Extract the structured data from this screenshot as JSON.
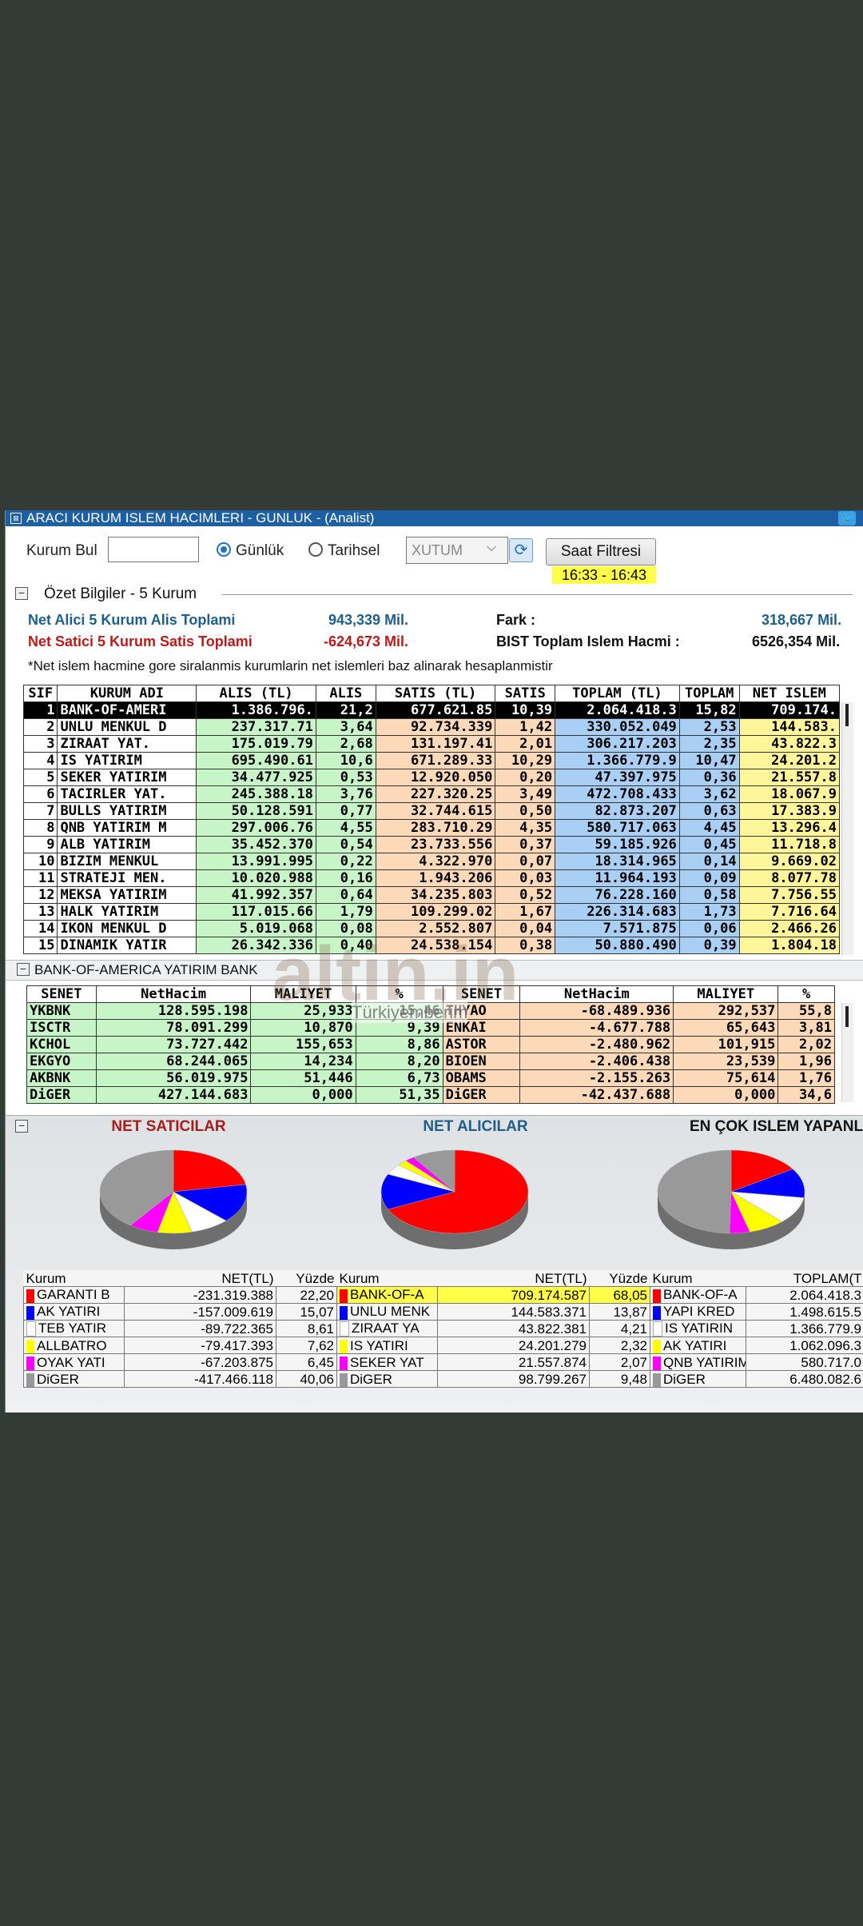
{
  "window": {
    "title": "ARACI KURUM ISLEM HACIMLERI - GUNLUK - (Analist)"
  },
  "toolbar": {
    "kurum_bul_label": "Kurum Bul",
    "kurum_bul_value": "",
    "radio_gunluk": "Günlük",
    "radio_tarihsel": "Tarihsel",
    "select_value": "XUTUM",
    "saat_filtresi": "Saat Filtresi",
    "time_range": "16:33 - 16:43"
  },
  "summary": {
    "section_title": "Özet Bilgiler - 5 Kurum",
    "net_alici_label": "Net Alici 5 Kurum Alis Toplami",
    "net_alici_value": "943,339 Mil.",
    "fark_label": "Fark :",
    "fark_value": "318,667 Mil.",
    "net_satici_label": "Net Satici 5 Kurum Satis Toplami",
    "net_satici_value": "-624,673 Mil.",
    "bist_label": "BIST Toplam Islem Hacmi :",
    "bist_value": "6526,354 Mil.",
    "note": "*Net islem hacmine gore siralanmis kurumlarin net islemleri baz alinarak hesaplanmistir"
  },
  "main_table": {
    "headers": [
      "SIF",
      "KURUM ADI",
      "ALIS (TL)",
      "ALIS",
      "SATIS (TL)",
      "SATIS",
      "TOPLAM (TL)",
      "TOPLAM",
      "NET ISLEM"
    ],
    "rows": [
      [
        "1",
        "BANK-OF-AMERI",
        "1.386.796.",
        "21,2",
        "677.621.85",
        "10,39",
        "2.064.418.3",
        "15,82",
        "709.174."
      ],
      [
        "2",
        "UNLU MENKUL D",
        "237.317.71",
        "3,64",
        "92.734.339",
        "1,42",
        "330.052.049",
        "2,53",
        "144.583."
      ],
      [
        "3",
        "ZIRAAT YAT.",
        "175.019.79",
        "2,68",
        "131.197.41",
        "2,01",
        "306.217.203",
        "2,35",
        "43.822.3"
      ],
      [
        "4",
        "IS YATIRIM",
        "695.490.61",
        "10,6",
        "671.289.33",
        "10,29",
        "1.366.779.9",
        "10,47",
        "24.201.2"
      ],
      [
        "5",
        "SEKER YATIRIM",
        "34.477.925",
        "0,53",
        "12.920.050",
        "0,20",
        "47.397.975",
        "0,36",
        "21.557.8"
      ],
      [
        "6",
        "TACIRLER YAT.",
        "245.388.18",
        "3,76",
        "227.320.25",
        "3,49",
        "472.708.433",
        "3,62",
        "18.067.9"
      ],
      [
        "7",
        "BULLS YATIRIM",
        "50.128.591",
        "0,77",
        "32.744.615",
        "0,50",
        "82.873.207",
        "0,63",
        "17.383.9"
      ],
      [
        "8",
        "QNB YATIRIM M",
        "297.006.76",
        "4,55",
        "283.710.29",
        "4,35",
        "580.717.063",
        "4,45",
        "13.296.4"
      ],
      [
        "9",
        "ALB YATIRIM",
        "35.452.370",
        "0,54",
        "23.733.556",
        "0,37",
        "59.185.926",
        "0,45",
        "11.718.8"
      ],
      [
        "10",
        "BIZIM MENKUL",
        "13.991.995",
        "0,22",
        "4.322.970",
        "0,07",
        "18.314.965",
        "0,14",
        "9.669.02"
      ],
      [
        "11",
        "STRATEJI MEN.",
        "10.020.988",
        "0,16",
        "1.943.206",
        "0,03",
        "11.964.193",
        "0,09",
        "8.077.78"
      ],
      [
        "12",
        "MEKSA YATIRIM",
        "41.992.357",
        "0,64",
        "34.235.803",
        "0,52",
        "76.228.160",
        "0,58",
        "7.756.55"
      ],
      [
        "13",
        "HALK YATIRIM",
        "117.015.66",
        "1,79",
        "109.299.02",
        "1,67",
        "226.314.683",
        "1,73",
        "7.716.64"
      ],
      [
        "14",
        "IKON MENKUL D",
        "5.019.068",
        "0,08",
        "2.552.807",
        "0,04",
        "7.571.875",
        "0,06",
        "2.466.26"
      ],
      [
        "15",
        "DINAMIK YATIR",
        "26.342.336",
        "0,40",
        "24.538.154",
        "0,38",
        "50.880.490",
        "0,39",
        "1.804.18"
      ]
    ]
  },
  "detail": {
    "section_title": "BANK-OF-AMERICA YATIRIM BANK",
    "headers": [
      "SENET",
      "NetHacim",
      "MALIYET",
      "%",
      "SENET",
      "NetHacim",
      "MALIYET",
      "%"
    ],
    "rows": [
      [
        "YKBNK",
        "128.595.198",
        "25,933",
        "15,46",
        "THYAO",
        "-68.489.936",
        "292,537",
        "55,8"
      ],
      [
        "ISCTR",
        "78.091.299",
        "10,870",
        "9,39",
        "ENKAI",
        "-4.677.788",
        "65,643",
        "3,81"
      ],
      [
        "KCHOL",
        "73.727.442",
        "155,653",
        "8,86",
        "ASTOR",
        "-2.480.962",
        "101,915",
        "2,02"
      ],
      [
        "EKGYO",
        "68.244.065",
        "14,234",
        "8,20",
        "BIOEN",
        "-2.406.438",
        "23,539",
        "1,96"
      ],
      [
        "AKBNK",
        "56.019.975",
        "51,446",
        "6,73",
        "OBAMS",
        "-2.155.263",
        "75,614",
        "1,76"
      ],
      [
        "DiGER",
        "427.144.683",
        "0,000",
        "51,35",
        "DiGER",
        "-42.437.688",
        "0,000",
        "34,6"
      ]
    ]
  },
  "charts_section": {
    "titles": [
      "NET SATICILAR",
      "NET ALICILAR",
      "EN ÇOK ISLEM YAPANL"
    ]
  },
  "chart_data": [
    {
      "type": "pie",
      "title": "NET SATICILAR",
      "categories": [
        "GARANTI B",
        "AK YATIRI",
        "TEB YATIR",
        "ALLBATRO",
        "OYAK YATI",
        "DiGER"
      ],
      "values": [
        22.2,
        15.07,
        8.61,
        7.62,
        6.45,
        40.06
      ],
      "colors": [
        "#ff0000",
        "#0000ff",
        "#ffffff",
        "#ffff00",
        "#ff00ff",
        "#999999"
      ]
    },
    {
      "type": "pie",
      "title": "NET ALICILAR",
      "categories": [
        "BANK-OF-A",
        "UNLU MENK",
        "ZIRAAT YA",
        "IS YATIRI",
        "SEKER YAT",
        "DiGER"
      ],
      "values": [
        68.05,
        13.87,
        4.21,
        2.32,
        2.07,
        9.48
      ],
      "colors": [
        "#ff0000",
        "#0000ff",
        "#ffffff",
        "#ffff00",
        "#ff00ff",
        "#999999"
      ]
    },
    {
      "type": "pie",
      "title": "EN ÇOK ISLEM YAPANL",
      "categories": [
        "BANK-OF-A",
        "YAPI KRED",
        "IS YATIRIM",
        "AK YATIRI",
        "QNB YATIR",
        "DiGER"
      ],
      "values": [
        2064.418,
        1498.615,
        1366.779,
        1062.096,
        580.717,
        6480.082
      ],
      "colors": [
        "#ff0000",
        "#0000ff",
        "#ffffff",
        "#ffff00",
        "#ff00ff",
        "#999999"
      ]
    }
  ],
  "legend_tables": [
    {
      "headers": [
        "Kurum",
        "NET(TL)",
        "Yüzde"
      ],
      "rows": [
        [
          "GARANTI B",
          "-231.319.388",
          "22,20"
        ],
        [
          "AK YATIRI",
          "-157.009.619",
          "15,07"
        ],
        [
          "TEB YATIR",
          "-89.722.365",
          "8,61"
        ],
        [
          "ALLBATRO",
          "-79.417.393",
          "7,62"
        ],
        [
          "OYAK YATI",
          "-67.203.875",
          "6,45"
        ],
        [
          "DiGER",
          "-417.466.118",
          "40,06"
        ]
      ]
    },
    {
      "headers": [
        "Kurum",
        "NET(TL)",
        "Yüzde"
      ],
      "rows": [
        [
          "BANK-OF-A",
          "709.174.587",
          "68,05"
        ],
        [
          "UNLU MENK",
          "144.583.371",
          "13,87"
        ],
        [
          "ZIRAAT YA",
          "43.822.381",
          "4,21"
        ],
        [
          "IS YATIRI",
          "24.201.279",
          "2,32"
        ],
        [
          "SEKER YAT",
          "21.557.874",
          "2,07"
        ],
        [
          "DiGER",
          "98.799.267",
          "9,48"
        ]
      ]
    },
    {
      "headers": [
        "Kurum",
        "TOPLAM(T"
      ],
      "rows": [
        [
          "BANK-OF-A",
          "2.064.418.3"
        ],
        [
          "YAPI KRED",
          "1.498.615.5"
        ],
        [
          "IS YATIRIN",
          "1.366.779.9"
        ],
        [
          "AK YATIRI",
          "1.062.096.3"
        ],
        [
          "QNB YATIRIM",
          "580.717.0"
        ],
        [
          "DiGER",
          "6.480.082.6"
        ]
      ]
    }
  ],
  "swatch_colors": [
    "#ff0000",
    "#0000ff",
    "#ffffff",
    "#ffff00",
    "#ff00ff",
    "#999999"
  ],
  "watermark": {
    "brand": "altin.in",
    "sub": "Türkiyemberim"
  }
}
